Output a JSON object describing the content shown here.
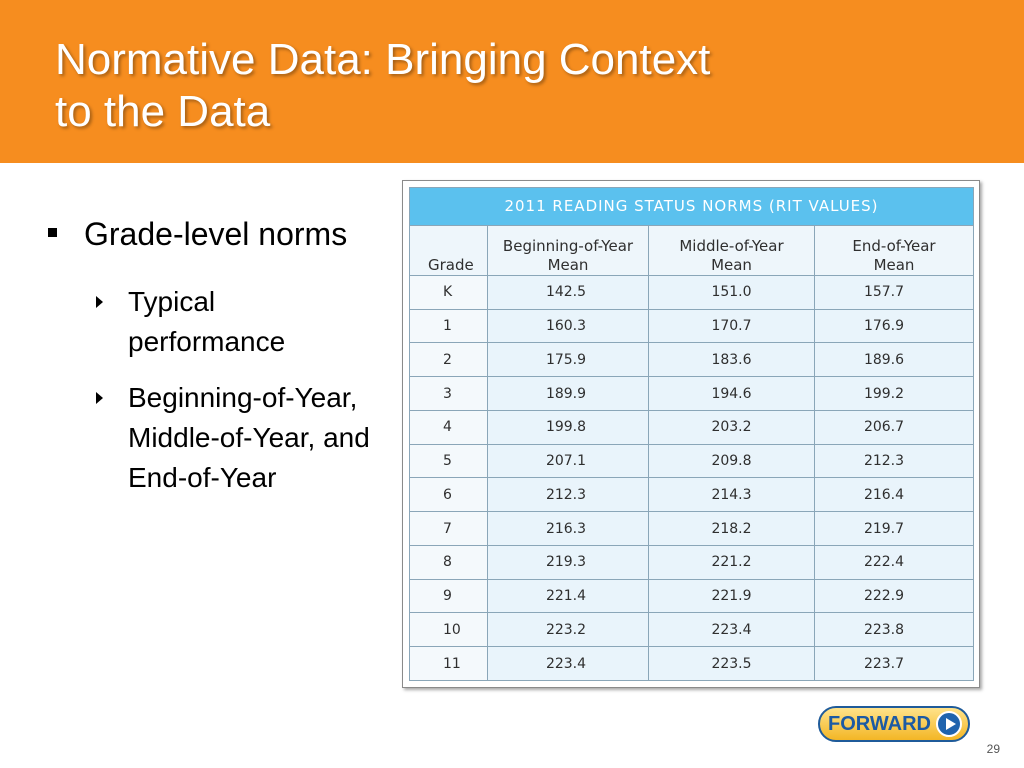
{
  "slide": {
    "title_line1": "Normative Data: Bringing Context",
    "title_line2": "to the Data",
    "slide_number": "29",
    "header_color": "#f68d1f"
  },
  "bullets": {
    "main": "Grade-level norms",
    "sub": [
      "Typical performance",
      "Beginning-of-Year, Middle-of-Year, and End-of-Year"
    ]
  },
  "table": {
    "caption": "2011 READING STATUS NORMS (RIT VALUES)",
    "headers": {
      "grade": "Grade",
      "boy_line1": "Beginning-of-Year",
      "boy_line2": "Mean",
      "moy_line1": "Middle-of-Year",
      "moy_line2": "Mean",
      "eoy_line1": "End-of-Year",
      "eoy_line2": "Mean"
    },
    "rows": [
      [
        "K",
        "142.5",
        "151.0",
        "157.7"
      ],
      [
        "1",
        "160.3",
        "170.7",
        "176.9"
      ],
      [
        "2",
        "175.9",
        "183.6",
        "189.6"
      ],
      [
        "3",
        "189.9",
        "194.6",
        "199.2"
      ],
      [
        "4",
        "199.8",
        "203.2",
        "206.7"
      ],
      [
        "5",
        "207.1",
        "209.8",
        "212.3"
      ],
      [
        "6",
        "212.3",
        "214.3",
        "216.4"
      ],
      [
        "7",
        "216.3",
        "218.2",
        "219.7"
      ],
      [
        "8",
        "219.3",
        "221.2",
        "222.4"
      ],
      [
        "9",
        "221.4",
        "221.9",
        "222.9"
      ],
      [
        "10",
        "223.2",
        "223.4",
        "223.8"
      ],
      [
        "11",
        "223.4",
        "223.5",
        "223.7"
      ]
    ],
    "caption_color": "#5bc1ee"
  },
  "nav": {
    "forward_label": "FORWARD",
    "forward_icon": "play-icon"
  }
}
